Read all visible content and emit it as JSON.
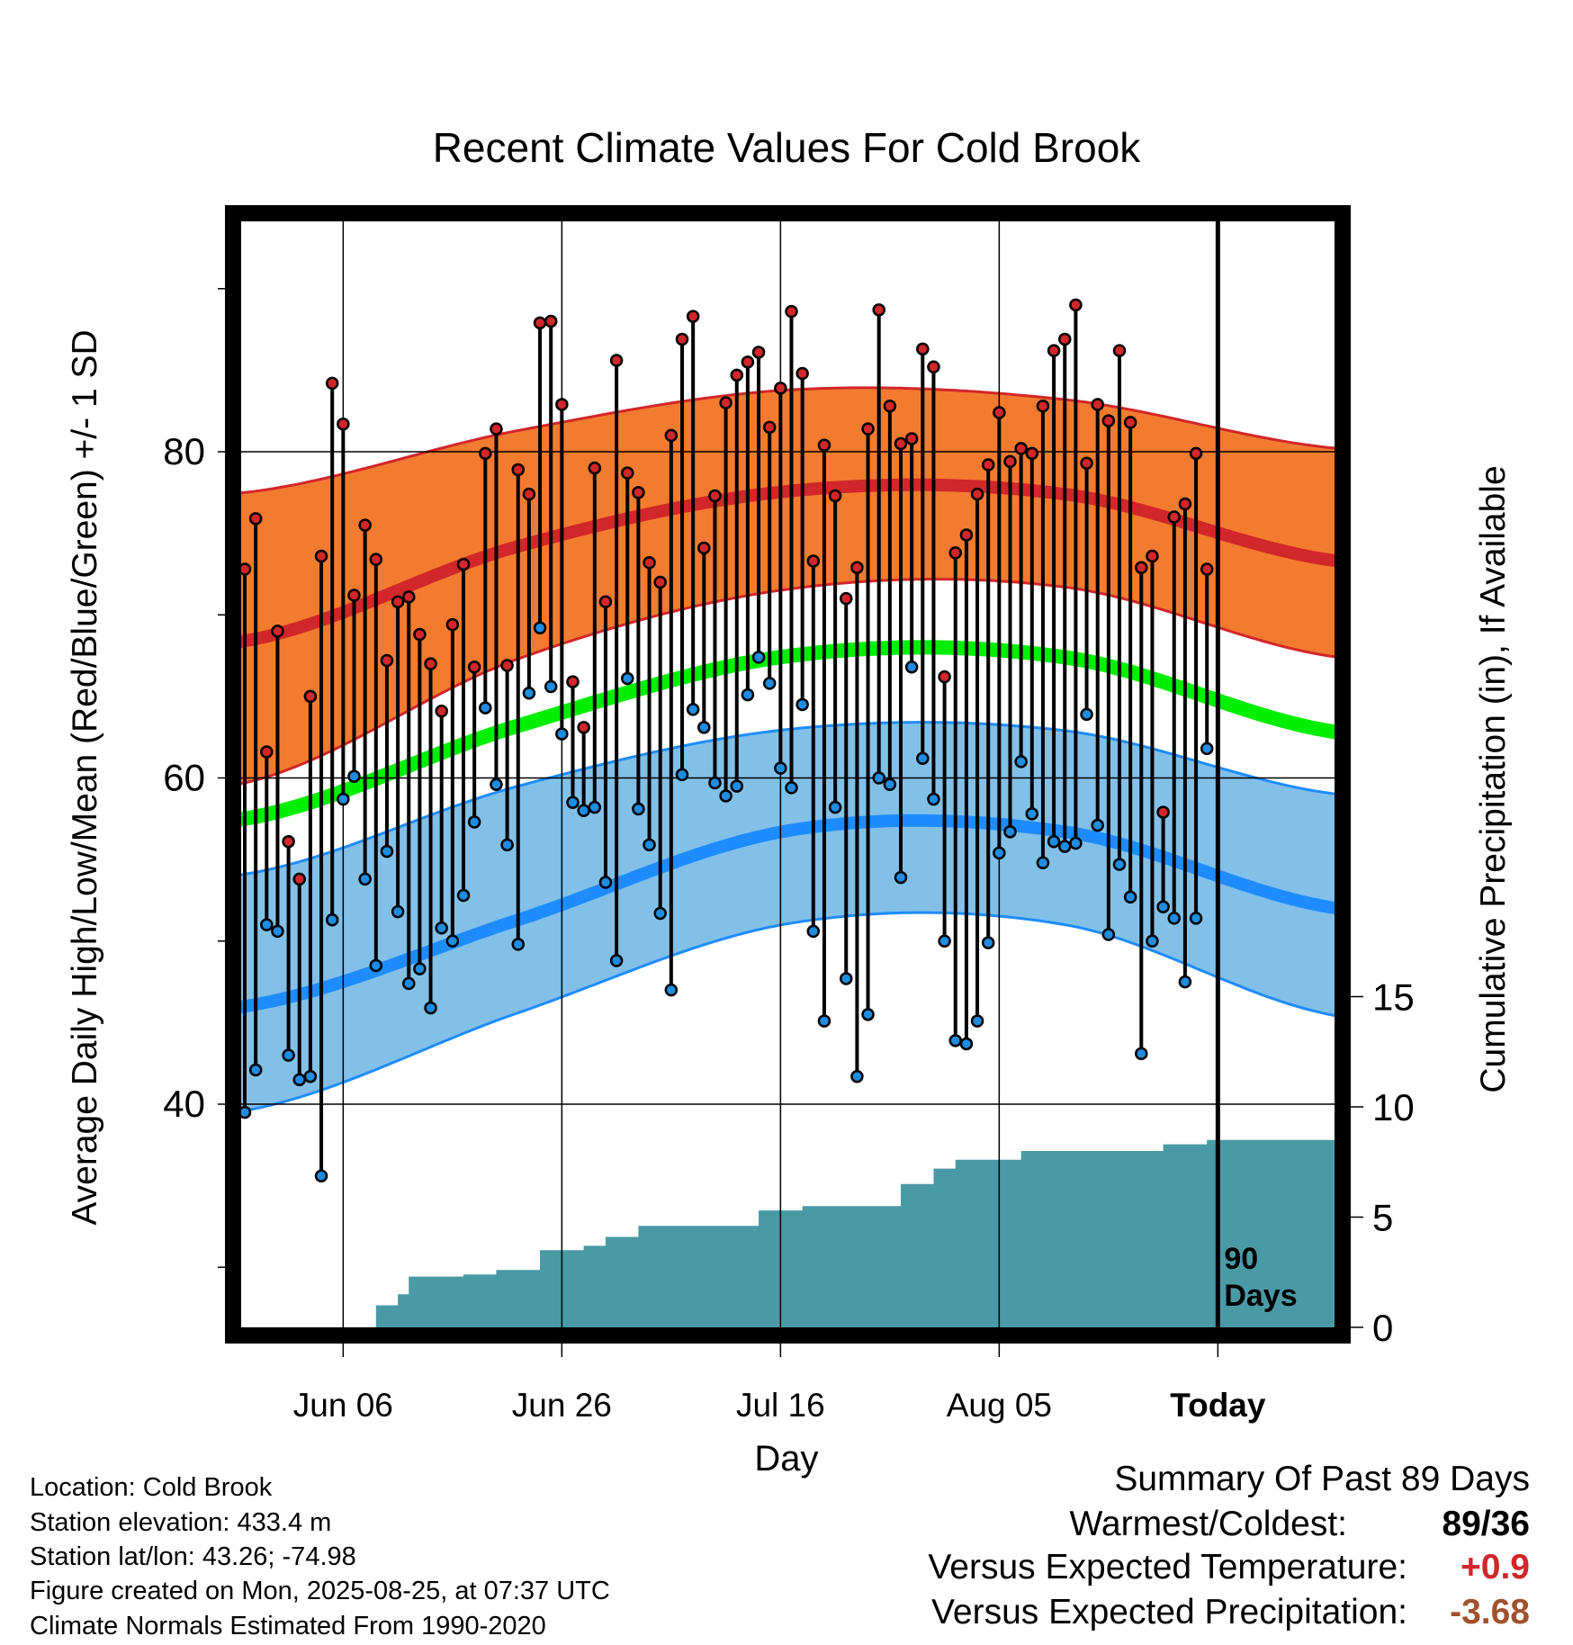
{
  "chart_data": {
    "type": "line",
    "title": "Recent Climate Values For Cold Brook",
    "xlabel": "Day",
    "ylabel": "Average Daily High/Low/Mean (Red/Blue/Green) +/- 1 SD",
    "y2label": "Cumulative Precipitation (in), If Available",
    "x_tick_labels": [
      "Jun 06",
      "Jun 26",
      "Jul 16",
      "Aug 05",
      "Today"
    ],
    "y_tick_labels": [
      "40",
      "60",
      "80"
    ],
    "y2_tick_labels": [
      "0",
      "5",
      "10",
      "15"
    ],
    "ylim": [
      26.5,
      95
    ],
    "y2lim": [
      0,
      47.5
    ],
    "today_label_lines": [
      "90",
      "Days"
    ],
    "days": [
      {
        "high": 72.8,
        "low": 39.5
      },
      {
        "high": 75.9,
        "low": 42.1
      },
      {
        "high": 61.6,
        "low": 51.0
      },
      {
        "high": 69.0,
        "low": 50.6
      },
      {
        "high": 56.1,
        "low": 43.0
      },
      {
        "high": 53.8,
        "low": 41.5
      },
      {
        "high": 65.0,
        "low": 41.7
      },
      {
        "high": 73.6,
        "low": 35.6
      },
      {
        "high": 84.2,
        "low": 51.3
      },
      {
        "high": 81.7,
        "low": 58.7
      },
      {
        "high": 71.2,
        "low": 60.1
      },
      {
        "high": 75.5,
        "low": 53.8
      },
      {
        "high": 73.4,
        "low": 48.5
      },
      {
        "high": 67.2,
        "low": 55.5
      },
      {
        "high": 70.8,
        "low": 51.8
      },
      {
        "high": 71.1,
        "low": 47.4
      },
      {
        "high": 68.8,
        "low": 48.3
      },
      {
        "high": 67.0,
        "low": 45.9
      },
      {
        "high": 64.1,
        "low": 50.8
      },
      {
        "high": 69.4,
        "low": 50.0
      },
      {
        "high": 73.1,
        "low": 52.8
      },
      {
        "high": 66.8,
        "low": 57.3
      },
      {
        "high": 79.9,
        "low": 64.3
      },
      {
        "high": 81.4,
        "low": 59.6
      },
      {
        "high": 66.9,
        "low": 55.9
      },
      {
        "high": 78.9,
        "low": 49.8
      },
      {
        "high": 77.4,
        "low": 65.2
      },
      {
        "high": 87.9,
        "low": 69.2
      },
      {
        "high": 88.0,
        "low": 65.6
      },
      {
        "high": 82.9,
        "low": 62.7
      },
      {
        "high": 65.9,
        "low": 58.5
      },
      {
        "high": 63.1,
        "low": 58.0
      },
      {
        "high": 79.0,
        "low": 58.2
      },
      {
        "high": 70.8,
        "low": 53.6
      },
      {
        "high": 85.6,
        "low": 48.8
      },
      {
        "high": 78.7,
        "low": 66.1
      },
      {
        "high": 77.5,
        "low": 58.1
      },
      {
        "high": 73.2,
        "low": 55.9
      },
      {
        "high": 72.0,
        "low": 51.7
      },
      {
        "high": 81.0,
        "low": 47.0
      },
      {
        "high": 86.9,
        "low": 60.2
      },
      {
        "high": 88.3,
        "low": 64.2
      },
      {
        "high": 74.1,
        "low": 63.1
      },
      {
        "high": 77.3,
        "low": 59.7
      },
      {
        "high": 83.0,
        "low": 58.9
      },
      {
        "high": 84.7,
        "low": 59.5
      },
      {
        "high": 85.5,
        "low": 65.1
      },
      {
        "high": 86.1,
        "low": 67.4
      },
      {
        "high": 81.5,
        "low": 65.8
      },
      {
        "high": 83.9,
        "low": 60.6
      },
      {
        "high": 88.6,
        "low": 59.4
      },
      {
        "high": 84.8,
        "low": 64.5
      },
      {
        "high": 73.3,
        "low": 50.6
      },
      {
        "high": 80.4,
        "low": 45.1
      },
      {
        "high": 77.3,
        "low": 58.2
      },
      {
        "high": 71.0,
        "low": 47.7
      },
      {
        "high": 72.9,
        "low": 41.7
      },
      {
        "high": 81.4,
        "low": 45.5
      },
      {
        "high": 88.7,
        "low": 60.0
      },
      {
        "high": 82.8,
        "low": 59.6
      },
      {
        "high": 80.5,
        "low": 53.9
      },
      {
        "high": 80.8,
        "low": 66.8
      },
      {
        "high": 86.3,
        "low": 61.2
      },
      {
        "high": 85.2,
        "low": 58.7
      },
      {
        "high": 66.2,
        "low": 50.0
      },
      {
        "high": 73.8,
        "low": 43.9
      },
      {
        "high": 74.9,
        "low": 43.7
      },
      {
        "high": 77.4,
        "low": 45.1
      },
      {
        "high": 79.2,
        "low": 49.9
      },
      {
        "high": 82.4,
        "low": 55.4
      },
      {
        "high": 79.4,
        "low": 56.7
      },
      {
        "high": 80.2,
        "low": 61.0
      },
      {
        "high": 79.9,
        "low": 57.8
      },
      {
        "high": 82.8,
        "low": 54.8
      },
      {
        "high": 86.2,
        "low": 56.1
      },
      {
        "high": 86.9,
        "low": 55.8
      },
      {
        "high": 89.0,
        "low": 56.0
      },
      {
        "high": 79.3,
        "low": 63.9
      },
      {
        "high": 82.9,
        "low": 57.1
      },
      {
        "high": 81.9,
        "low": 50.4
      },
      {
        "high": 86.2,
        "low": 54.7
      },
      {
        "high": 81.8,
        "low": 52.7
      },
      {
        "high": 72.9,
        "low": 43.1
      },
      {
        "high": 73.6,
        "low": 50.0
      },
      {
        "high": 57.9,
        "low": 52.1
      },
      {
        "high": 76.0,
        "low": 51.4
      },
      {
        "high": 76.8,
        "low": 47.5
      },
      {
        "high": 79.9,
        "low": 51.4
      },
      {
        "high": 72.8,
        "low": 61.8
      }
    ],
    "normals": {
      "days": [
        0,
        25,
        50,
        75,
        100
      ],
      "high_mean": [
        68.4,
        74.2,
        77.6,
        77.4,
        73.3
      ],
      "high_sd_upper": [
        77.5,
        81.3,
        83.8,
        83.2,
        80.2
      ],
      "high_sd_lower": [
        59.7,
        67.3,
        71.6,
        71.7,
        67.4
      ],
      "mean": [
        57.5,
        63.2,
        67.5,
        67.4,
        62.8
      ],
      "low_mean": [
        46.0,
        51.3,
        56.8,
        56.7,
        52.0
      ],
      "low_sd_upper": [
        54.1,
        59.5,
        63.0,
        62.9,
        59.0
      ],
      "low_sd_lower": [
        39.6,
        45.6,
        51.1,
        51.0,
        45.4
      ]
    },
    "cumulative_precipitation": [
      {
        "day": 10,
        "value": 0
      },
      {
        "day": 12,
        "value": 1.0
      },
      {
        "day": 14,
        "value": 1.5
      },
      {
        "day": 15,
        "value": 2.3
      },
      {
        "day": 20,
        "value": 2.4
      },
      {
        "day": 23,
        "value": 2.6
      },
      {
        "day": 27,
        "value": 3.5
      },
      {
        "day": 31,
        "value": 3.7
      },
      {
        "day": 33,
        "value": 4.1
      },
      {
        "day": 36,
        "value": 4.6
      },
      {
        "day": 47,
        "value": 5.3
      },
      {
        "day": 51,
        "value": 5.5
      },
      {
        "day": 60,
        "value": 6.5
      },
      {
        "day": 63,
        "value": 7.2
      },
      {
        "day": 65,
        "value": 7.6
      },
      {
        "day": 71,
        "value": 8.0
      },
      {
        "day": 84,
        "value": 8.3
      },
      {
        "day": 88,
        "value": 8.5
      }
    ],
    "grid": true,
    "colors": {
      "high_band": "#F37B2F",
      "high_line": "#D1262A",
      "low_band": "#82C0E8",
      "low_line": "#1E8CFF",
      "mean_line": "#00EE00",
      "precip": "#4A9AA5",
      "high_dot": "#D1262A",
      "low_dot": "#1E8CE0"
    }
  },
  "info": {
    "location": "Location: Cold Brook",
    "elevation": "Station elevation: 433.4 m",
    "latlon": "Station lat/lon: 43.26; -74.98",
    "created": "Figure created on Mon, 2025-08-25, at 07:37 UTC",
    "normals": "Climate Normals Estimated From 1990-2020"
  },
  "summary": {
    "heading": "Summary Of Past 89 Days",
    "warmest_label": "Warmest/Coldest:",
    "warmest_value": "89/36",
    "temp_label": "Versus Expected Temperature:",
    "temp_value": "+0.9",
    "temp_color": "#D1262A",
    "precip_label": "Versus Expected Precipitation:",
    "precip_value": "-3.68",
    "precip_color": "#A0522D"
  }
}
